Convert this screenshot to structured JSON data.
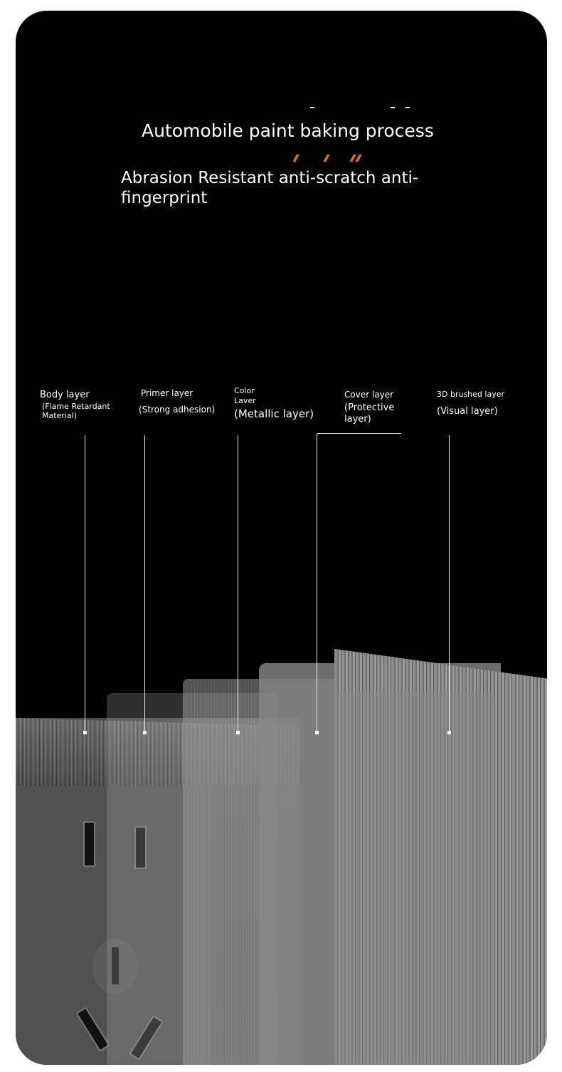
{
  "header": {
    "title": "Automobile paint baking process",
    "subtitle": "Abrasion Resistant anti-scratch anti-fingerprint"
  },
  "layers": [
    {
      "name": "Body layer",
      "detail": "(Flame Retardant Material)"
    },
    {
      "name": "Primer layer",
      "detail": "(Strong adhesion)"
    },
    {
      "name": "Color Laver",
      "detail": "(Metallic layer)"
    },
    {
      "name": "Cover layer",
      "detail": "(Protective layer)"
    },
    {
      "name": "3D brushed layer",
      "detail": "(Visual layer)"
    }
  ],
  "colors": {
    "background": "#000000",
    "accent": "#e0701e",
    "text": "#ffffff"
  }
}
